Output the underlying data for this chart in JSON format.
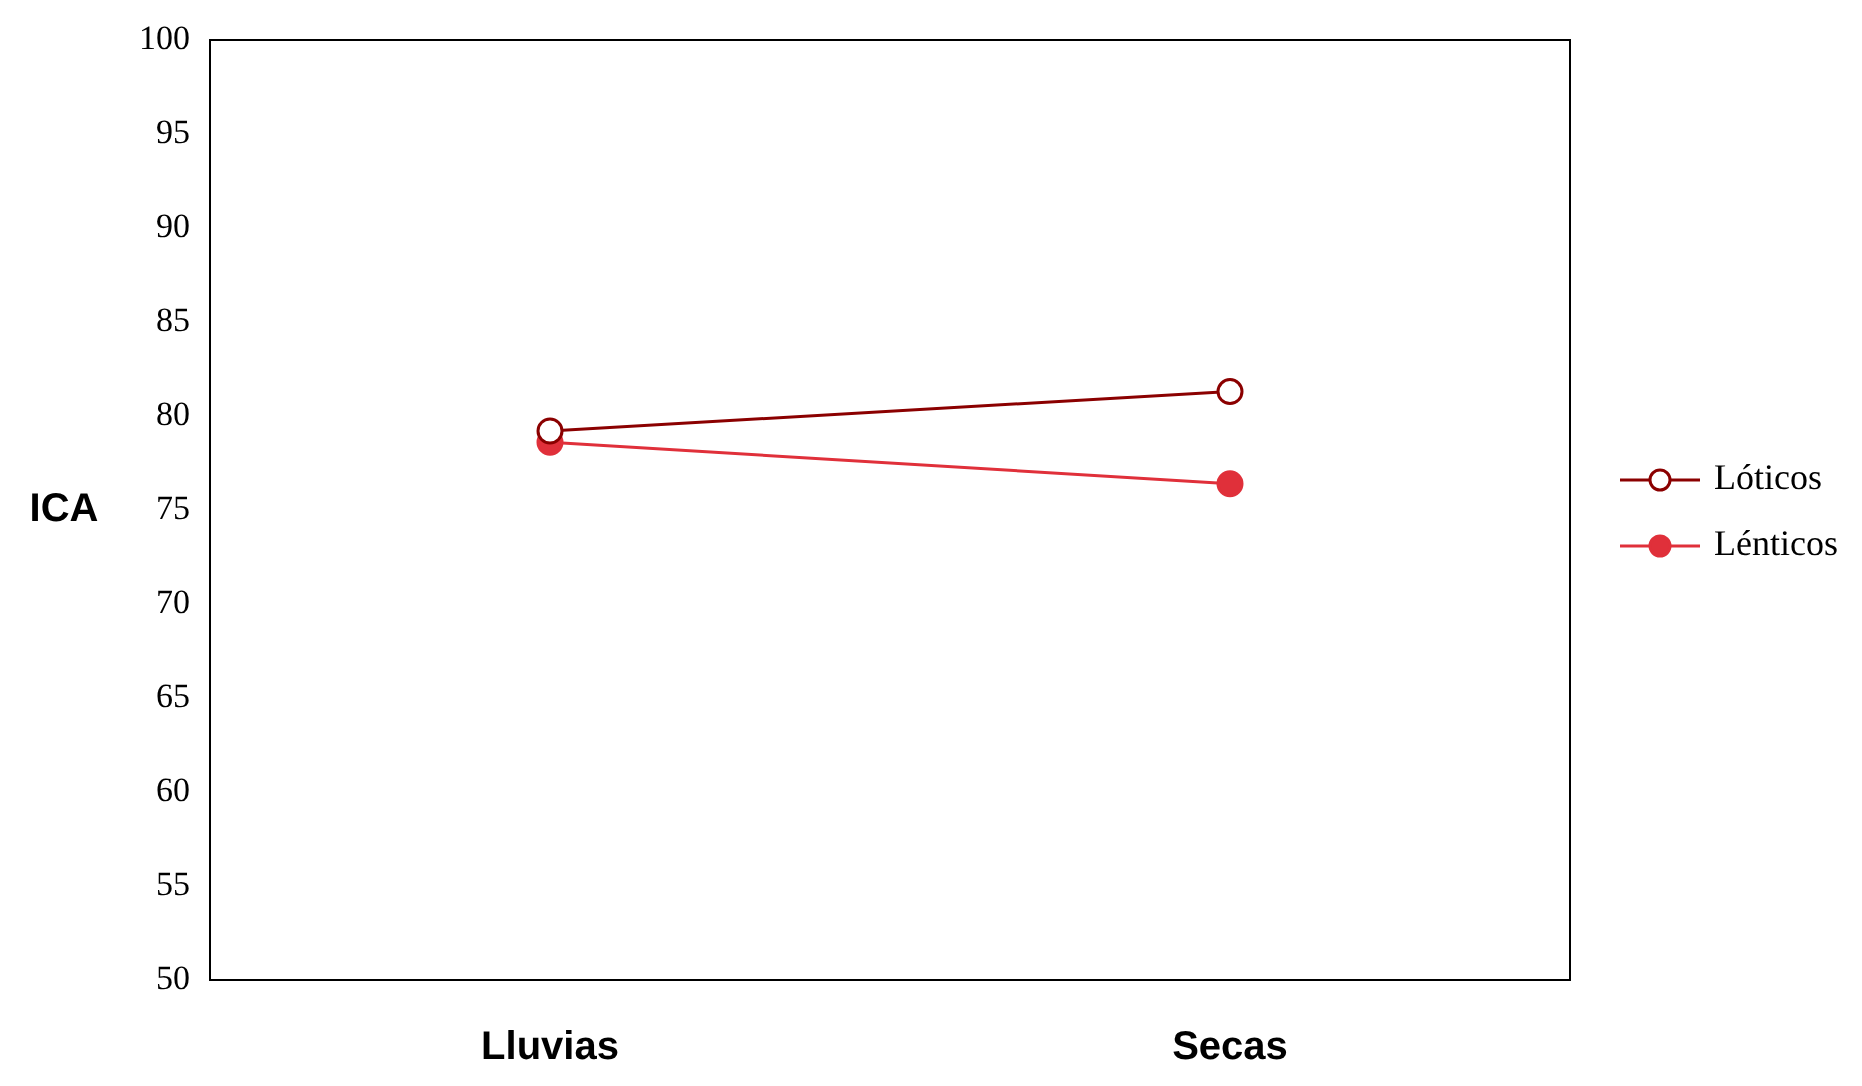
{
  "chart_data": {
    "type": "line",
    "ylabel": "ICA",
    "categories": [
      "Lluvias",
      "Secas"
    ],
    "series": [
      {
        "name": "Lóticos",
        "color": "#8b0000",
        "values": [
          79.2,
          81.3
        ]
      },
      {
        "name": "Lénticos",
        "color": "#e0303a",
        "values": [
          78.6,
          76.4
        ]
      }
    ],
    "ylim": [
      50,
      100
    ],
    "yticks": [
      50,
      55,
      60,
      65,
      70,
      75,
      80,
      85,
      90,
      95,
      100
    ],
    "grid": false,
    "legend": "right",
    "marker": "circle",
    "line_style": "solid"
  }
}
